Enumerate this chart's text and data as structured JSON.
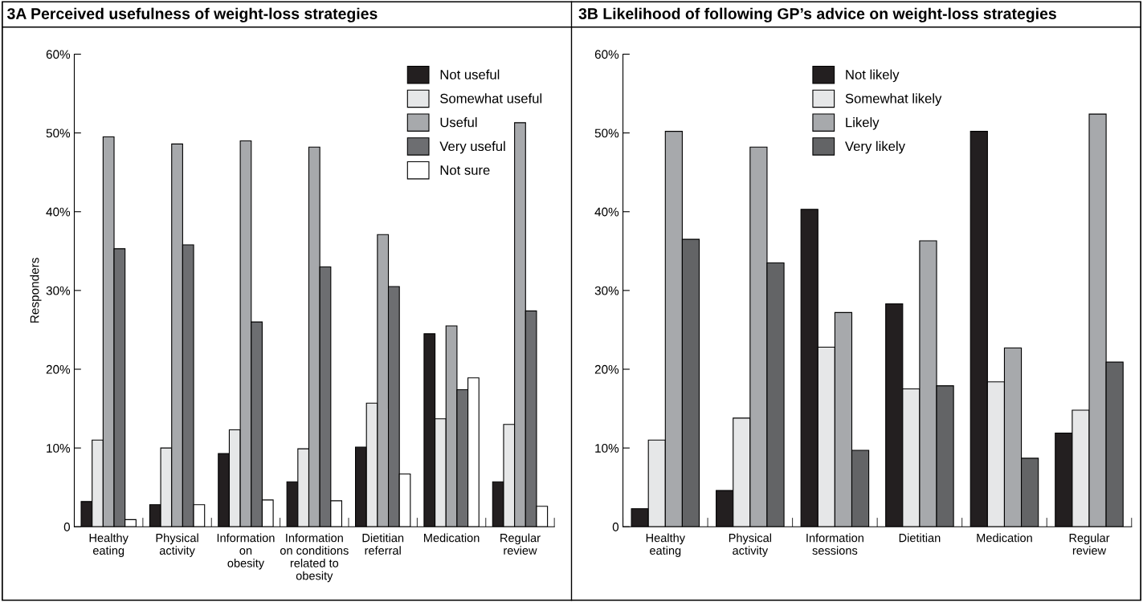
{
  "chart_data": [
    {
      "type": "bar",
      "title": "3A Perceived usefulness of weight-loss strategies",
      "ylabel": "Responders",
      "categories": [
        "Healthy\neating",
        "Physical\nactivity",
        "Information\non\nobesity",
        "Information\non conditions\nrelated to\nobesity",
        "Dietitian\nreferral",
        "Medication",
        "Regular\nreview"
      ],
      "series": [
        {
          "name": "Not useful",
          "color": "#231f20",
          "values": [
            3.2,
            2.8,
            9.3,
            5.7,
            10.1,
            24.5,
            5.7
          ]
        },
        {
          "name": "Somewhat useful",
          "color": "#e6e7e8",
          "values": [
            11.0,
            10.0,
            12.3,
            9.9,
            15.7,
            13.7,
            13.0
          ]
        },
        {
          "name": "Useful",
          "color": "#a7a9ac",
          "values": [
            49.5,
            48.6,
            49.0,
            48.2,
            37.1,
            25.5,
            51.3
          ]
        },
        {
          "name": "Very useful",
          "color": "#6d6e71",
          "values": [
            35.3,
            35.8,
            26.0,
            33.0,
            30.5,
            17.4,
            27.4
          ]
        },
        {
          "name": "Not sure",
          "color": "#ffffff",
          "values": [
            0.9,
            2.8,
            3.4,
            3.3,
            6.7,
            18.9,
            2.6
          ]
        }
      ],
      "ylim": [
        0,
        60
      ],
      "yticks": [
        0,
        {
          "value": 10,
          "label": "10%"
        },
        {
          "value": 20,
          "label": "20%"
        },
        {
          "value": 30,
          "label": "30%"
        },
        {
          "value": 40,
          "label": "40%"
        },
        {
          "value": 50,
          "label": "50%"
        },
        {
          "value": 60,
          "label": "60%"
        }
      ],
      "grid": false,
      "legend": "top right"
    },
    {
      "type": "bar",
      "title": "3B Likelihood of following GP’s advice on weight-loss strategies",
      "categories": [
        "Healthy\neating",
        "Physical\nactivity",
        "Information\nsessions",
        "Dietitian",
        "Medication",
        "Regular\nreview"
      ],
      "series": [
        {
          "name": "Not likely",
          "color": "#231f20",
          "values": [
            2.3,
            4.6,
            40.3,
            28.3,
            50.2,
            11.9
          ]
        },
        {
          "name": "Somewhat likely",
          "color": "#e6e7e8",
          "values": [
            11.0,
            13.8,
            22.8,
            17.5,
            18.4,
            14.8
          ]
        },
        {
          "name": "Likely",
          "color": "#a7a9ac",
          "values": [
            50.2,
            48.2,
            27.2,
            36.3,
            22.7,
            52.4
          ]
        },
        {
          "name": "Very likely",
          "color": "#636466",
          "values": [
            36.5,
            33.5,
            9.7,
            17.9,
            8.7,
            20.9
          ]
        }
      ],
      "ylim": [
        0,
        60
      ],
      "yticks": [
        0,
        {
          "value": 10,
          "label": "10%"
        },
        {
          "value": 20,
          "label": "20%"
        },
        {
          "value": 30,
          "label": "30%"
        },
        {
          "value": 40,
          "label": "40%"
        },
        {
          "value": 50,
          "label": "50%"
        },
        {
          "value": 60,
          "label": "60%"
        }
      ],
      "grid": false,
      "legend": "top"
    }
  ]
}
